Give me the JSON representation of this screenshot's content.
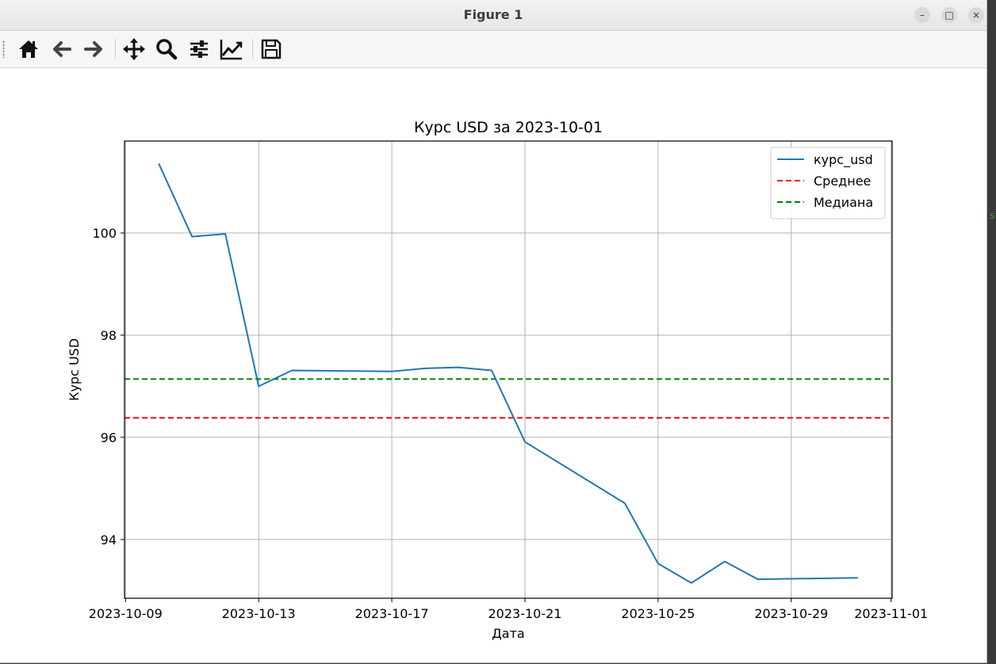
{
  "window": {
    "title": "Figure 1",
    "buttons": {
      "minimize": "–",
      "maximize": "□",
      "close": "×"
    }
  },
  "toolbar": {
    "tools": [
      {
        "name": "home-button",
        "icon": "home-icon"
      },
      {
        "name": "back-button",
        "icon": "arrow-left-icon"
      },
      {
        "name": "forward-button",
        "icon": "arrow-right-icon"
      },
      {
        "name": "pan-button",
        "icon": "move-icon"
      },
      {
        "name": "zoom-button",
        "icon": "magnifier-icon"
      },
      {
        "name": "subplots-button",
        "icon": "sliders-icon"
      },
      {
        "name": "edit-axes-button",
        "icon": "trend-chart-icon"
      },
      {
        "name": "save-button",
        "icon": "floppy-disk-icon"
      }
    ]
  },
  "chart_data": {
    "type": "line",
    "title": "Курс USD за 2023-10-01",
    "xlabel": "Дата",
    "ylabel": "Курс USD",
    "x_ticks": [
      "2023-10-09",
      "2023-10-13",
      "2023-10-17",
      "2023-10-21",
      "2023-10-25",
      "2023-10-29",
      "2023-11-01"
    ],
    "y_ticks": [
      94,
      96,
      98,
      100
    ],
    "xlim": [
      "2023-10-08.97",
      "2023-11-01.03"
    ],
    "ylim": [
      92.85,
      101.8
    ],
    "grid": true,
    "legend": "top-right",
    "series": [
      {
        "name": "курс_usd",
        "color": "#1f77b4",
        "style": "solid",
        "x": [
          "2023-10-10",
          "2023-10-11",
          "2023-10-12",
          "2023-10-13",
          "2023-10-14",
          "2023-10-17",
          "2023-10-18",
          "2023-10-19",
          "2023-10-20",
          "2023-10-21",
          "2023-10-24",
          "2023-10-25",
          "2023-10-26",
          "2023-10-27",
          "2023-10-28",
          "2023-10-31"
        ],
        "values": [
          101.36,
          99.93,
          99.98,
          97.0,
          97.31,
          97.29,
          97.35,
          97.37,
          97.31,
          95.91,
          94.71,
          93.53,
          93.15,
          93.57,
          93.22,
          93.25
        ]
      },
      {
        "name": "Среднее",
        "color": "#ff0000",
        "style": "dashed",
        "value": 96.38
      },
      {
        "name": "Медиана",
        "color": "#008000",
        "style": "dashed",
        "value": 97.14
      }
    ]
  },
  "edge_text": "S"
}
